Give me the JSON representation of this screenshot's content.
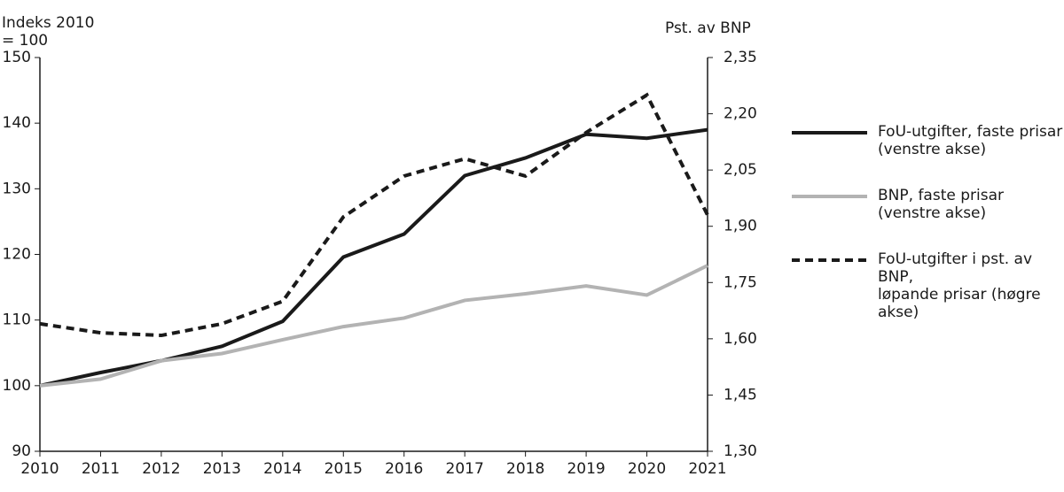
{
  "chart_data": {
    "type": "line",
    "y_label": "Indeks 2010\n= 100",
    "y2_label": "Pst. av BNP",
    "x": [
      2010,
      2011,
      2012,
      2013,
      2014,
      2015,
      2016,
      2017,
      2018,
      2019,
      2020,
      2021
    ],
    "xlim": [
      2010,
      2021
    ],
    "xticks": [
      2010,
      2011,
      2012,
      2013,
      2014,
      2015,
      2016,
      2017,
      2018,
      2019,
      2020,
      2021
    ],
    "ylim": [
      90,
      150
    ],
    "yticks": [
      90,
      100,
      110,
      120,
      130,
      140,
      150
    ],
    "y2lim": [
      1.3,
      2.35
    ],
    "y2ticks": [
      {
        "value": 1.3,
        "label": "1,30"
      },
      {
        "value": 1.45,
        "label": "1,45"
      },
      {
        "value": 1.6,
        "label": "1,60"
      },
      {
        "value": 1.75,
        "label": "1,75"
      },
      {
        "value": 1.9,
        "label": "1,90"
      },
      {
        "value": 2.05,
        "label": "2,05"
      },
      {
        "value": 2.2,
        "label": "2,20"
      },
      {
        "value": 2.35,
        "label": "2,35"
      }
    ],
    "grid": false,
    "legend": "right",
    "series": [
      {
        "name": "FoU-utgifter, faste prisar\n(venstre akse)",
        "color": "#1a1a1a",
        "dashed": false,
        "values": [
          100,
          102,
          103.8,
          106,
          109.8,
          119.6,
          123.1,
          132,
          134.7,
          138.3,
          137.7,
          139
        ]
      },
      {
        "name": "BNP, faste prisar\n(venstre akse)",
        "color": "#b3b3b3",
        "dashed": false,
        "values": [
          100,
          101,
          103.8,
          104.9,
          107,
          109,
          110.3,
          113,
          114,
          115.2,
          113.8,
          118.3
        ]
      },
      {
        "name": "FoU-utgifter i pst. av BNP,\nløpande prisar (høgre akse)",
        "color": "#1a1a1a",
        "dashed": true,
        "axis": "y2",
        "values": [
          1.64,
          1.616,
          1.609,
          1.64,
          1.7,
          1.925,
          2.034,
          2.08,
          2.034,
          2.15,
          2.25,
          1.93
        ]
      }
    ]
  }
}
